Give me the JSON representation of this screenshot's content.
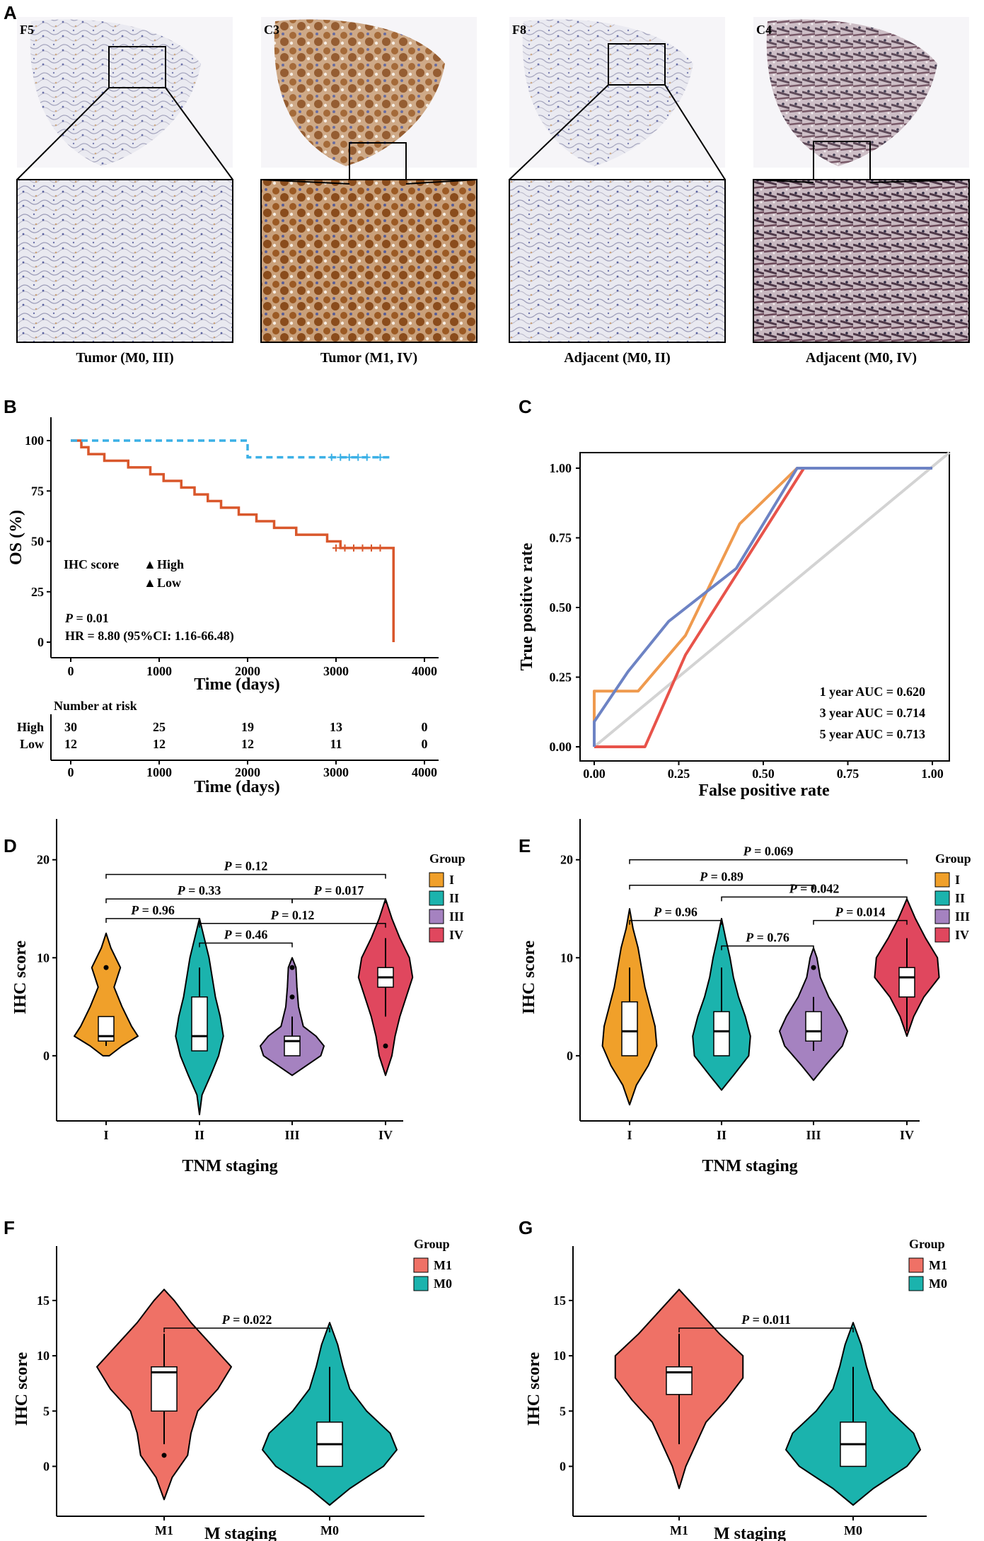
{
  "panel_labels": [
    "A",
    "B",
    "C",
    "D",
    "E",
    "F",
    "G"
  ],
  "panel_a": {
    "tiles": [
      {
        "id": "F5",
        "caption": "Tumor (M0, III)",
        "stain": "light"
      },
      {
        "id": "C3",
        "caption": "Tumor (M1, IV)",
        "stain": "brown"
      },
      {
        "id": "F8",
        "caption": "Adjacent (M0, II)",
        "stain": "light"
      },
      {
        "id": "C4",
        "caption": "Adjacent (M0, IV)",
        "stain": "dark"
      }
    ]
  },
  "colors": {
    "high": "#d9572b",
    "low": "#3bb0e6",
    "auc1": "#e8534a",
    "auc3": "#ef9a4e",
    "auc5": "#6d83c4",
    "diag": "#d3d3d3",
    "I": "#f0a02a",
    "II": "#1bb3ad",
    "III": "#a582c0",
    "IV": "#e0475e",
    "M1": "#ef7166",
    "M0": "#1bb3ad"
  },
  "chart_data": [
    {
      "panel": "B",
      "type": "line",
      "title": "",
      "xlabel": "Time (days)",
      "ylabel": "OS (%)",
      "xlim": [
        0,
        4000
      ],
      "ylim": [
        0,
        100
      ],
      "xticks": [
        "0",
        "1000",
        "2000",
        "3000",
        "4000"
      ],
      "yticks": [
        "0",
        "25",
        "50",
        "75",
        "100"
      ],
      "legend_title": "IHC score",
      "series": [
        {
          "name": "High",
          "x": [
            0,
            120,
            200,
            380,
            650,
            900,
            1050,
            1250,
            1400,
            1550,
            1700,
            1900,
            2100,
            2300,
            2550,
            2900,
            3050,
            3650,
            3650
          ],
          "y": [
            100,
            96.7,
            93.3,
            90,
            86.7,
            83.3,
            80,
            76.7,
            73.3,
            70,
            66.7,
            63.3,
            60,
            56.7,
            53.3,
            50,
            46.7,
            46.7,
            0
          ]
        },
        {
          "name": "Low",
          "x": [
            0,
            2000,
            2000,
            3650
          ],
          "y": [
            100,
            100,
            91.7,
            91.7
          ]
        }
      ],
      "annotations": [
        "P = 0.01",
        "HR = 8.80 (95%CI: 1.16-66.48)"
      ],
      "risk_table": {
        "title": "Number at risk",
        "rows": [
          {
            "name": "High",
            "values": [
              "30",
              "25",
              "19",
              "13",
              "0"
            ]
          },
          {
            "name": "Low",
            "values": [
              "12",
              "12",
              "12",
              "11",
              "0"
            ]
          }
        ],
        "xlabel": "Time (days)"
      }
    },
    {
      "panel": "C",
      "type": "line",
      "xlabel": "False positive rate",
      "ylabel": "True positive rate",
      "xlim": [
        0,
        1
      ],
      "ylim": [
        0,
        1
      ],
      "xticks": [
        "0.00",
        "0.25",
        "0.50",
        "0.75",
        "1.00"
      ],
      "yticks": [
        "0.00",
        "0.25",
        "0.50",
        "0.75",
        "1.00"
      ],
      "series": [
        {
          "name": "1 year AUC = 0.620",
          "x": [
            0,
            0,
            0.15,
            0.27,
            0.62,
            1.0
          ],
          "y": [
            0,
            0,
            0,
            0.33,
            1.0,
            1.0
          ]
        },
        {
          "name": "3 year AUC = 0.714",
          "x": [
            0,
            0,
            0.13,
            0.27,
            0.43,
            0.6,
            1.0
          ],
          "y": [
            0,
            0.2,
            0.2,
            0.4,
            0.8,
            1.0,
            1.0
          ]
        },
        {
          "name": "5 year AUC = 0.713",
          "x": [
            0,
            0,
            0.1,
            0.22,
            0.42,
            0.6,
            1.0
          ],
          "y": [
            0,
            0.09,
            0.27,
            0.45,
            0.64,
            1.0,
            1.0
          ]
        }
      ]
    },
    {
      "panel": "D",
      "type": "violin",
      "xlabel": "TNM staging",
      "ylabel": "IHC score",
      "ylim": [
        -6,
        22
      ],
      "yticks": [
        0,
        10,
        20
      ],
      "categories": [
        "I",
        "II",
        "III",
        "IV"
      ],
      "legend_title": "Group",
      "groups": [
        {
          "name": "I",
          "min": 0,
          "max": 12.5,
          "q1": 1.5,
          "median": 2,
          "q3": 4,
          "wmin": 1,
          "wmax": 4,
          "outliers": [
            9
          ],
          "dens": [
            [
              0,
              0.1
            ],
            [
              1,
              0.5
            ],
            [
              2,
              1.0
            ],
            [
              3,
              0.8
            ],
            [
              5,
              0.5
            ],
            [
              7,
              0.25
            ],
            [
              9,
              0.45
            ],
            [
              11,
              0.15
            ],
            [
              12.5,
              0
            ]
          ]
        },
        {
          "name": "II",
          "min": -6,
          "max": 14,
          "q1": 0.5,
          "median": 2,
          "q3": 6,
          "wmin": 0.5,
          "wmax": 9,
          "outliers": [],
          "dens": [
            [
              -6,
              0
            ],
            [
              -4,
              0.08
            ],
            [
              -2,
              0.35
            ],
            [
              0,
              0.6
            ],
            [
              2,
              0.75
            ],
            [
              4,
              0.65
            ],
            [
              6,
              0.5
            ],
            [
              8,
              0.4
            ],
            [
              10,
              0.3
            ],
            [
              12,
              0.15
            ],
            [
              14,
              0
            ]
          ]
        },
        {
          "name": "III",
          "min": -2,
          "max": 10,
          "q1": 0,
          "median": 1.5,
          "q3": 2,
          "wmin": 0,
          "wmax": 4,
          "outliers": [
            6,
            9
          ],
          "dens": [
            [
              -2,
              0
            ],
            [
              -1,
              0.45
            ],
            [
              0,
              0.9
            ],
            [
              1,
              1.0
            ],
            [
              2,
              0.75
            ],
            [
              3,
              0.35
            ],
            [
              5,
              0.2
            ],
            [
              7,
              0.15
            ],
            [
              9,
              0.12
            ],
            [
              10,
              0
            ]
          ]
        },
        {
          "name": "IV",
          "min": -2,
          "max": 16,
          "q1": 7,
          "median": 8,
          "q3": 9,
          "wmin": 4,
          "wmax": 12,
          "outliers": [
            1
          ],
          "dens": [
            [
              -2,
              0
            ],
            [
              0,
              0.2
            ],
            [
              2,
              0.3
            ],
            [
              4,
              0.45
            ],
            [
              6,
              0.65
            ],
            [
              8,
              0.85
            ],
            [
              10,
              0.75
            ],
            [
              12,
              0.45
            ],
            [
              14,
              0.2
            ],
            [
              16,
              0
            ]
          ]
        }
      ],
      "brackets": [
        {
          "a": 0,
          "b": 1,
          "y": 14,
          "label": "P = 0.96"
        },
        {
          "a": 1,
          "b": 2,
          "y": 11.5,
          "label": "P = 0.46"
        },
        {
          "a": 0,
          "b": 2,
          "y": 16,
          "label": "P = 0.33"
        },
        {
          "a": 2,
          "b": 3,
          "y": 16,
          "label": "P = 0.017"
        },
        {
          "a": 1,
          "b": 3,
          "y": 13.5,
          "label": "P = 0.12"
        },
        {
          "a": 0,
          "b": 3,
          "y": 18.5,
          "label": "P = 0.12"
        }
      ]
    },
    {
      "panel": "E",
      "type": "violin",
      "xlabel": "TNM staging",
      "ylabel": "IHC score",
      "ylim": [
        -6,
        22
      ],
      "yticks": [
        0,
        10,
        20
      ],
      "categories": [
        "I",
        "II",
        "III",
        "IV"
      ],
      "legend_title": "Group",
      "groups": [
        {
          "name": "I",
          "min": -5,
          "max": 15,
          "q1": 0,
          "median": 2.5,
          "q3": 5.5,
          "wmin": 0,
          "wmax": 9,
          "outliers": [],
          "dens": [
            [
              -5,
              0
            ],
            [
              -3,
              0.2
            ],
            [
              -1,
              0.55
            ],
            [
              1,
              0.8
            ],
            [
              3,
              0.75
            ],
            [
              5,
              0.6
            ],
            [
              7,
              0.45
            ],
            [
              9,
              0.35
            ],
            [
              11,
              0.25
            ],
            [
              13,
              0.1
            ],
            [
              15,
              0
            ]
          ]
        },
        {
          "name": "II",
          "min": -3.5,
          "max": 14,
          "q1": 0,
          "median": 2.5,
          "q3": 4.5,
          "wmin": 0,
          "wmax": 9,
          "outliers": [],
          "dens": [
            [
              -3.5,
              0
            ],
            [
              -2,
              0.35
            ],
            [
              0,
              0.8
            ],
            [
              2,
              0.85
            ],
            [
              4,
              0.7
            ],
            [
              6,
              0.5
            ],
            [
              8,
              0.35
            ],
            [
              10,
              0.25
            ],
            [
              12,
              0.12
            ],
            [
              14,
              0
            ]
          ]
        },
        {
          "name": "III",
          "min": -2.5,
          "max": 11,
          "q1": 1.5,
          "median": 2.5,
          "q3": 4.5,
          "wmin": 0.5,
          "wmax": 6,
          "outliers": [
            9
          ],
          "dens": [
            [
              -2.5,
              0
            ],
            [
              -1,
              0.35
            ],
            [
              1,
              0.85
            ],
            [
              2.5,
              1.0
            ],
            [
              4,
              0.8
            ],
            [
              6,
              0.45
            ],
            [
              8,
              0.2
            ],
            [
              10,
              0.1
            ],
            [
              11,
              0
            ]
          ]
        },
        {
          "name": "IV",
          "min": 2,
          "max": 16,
          "q1": 6,
          "median": 8,
          "q3": 9,
          "wmin": 2.5,
          "wmax": 12,
          "outliers": [],
          "dens": [
            [
              2,
              0
            ],
            [
              4,
              0.2
            ],
            [
              6,
              0.5
            ],
            [
              8,
              0.95
            ],
            [
              10,
              0.9
            ],
            [
              12,
              0.55
            ],
            [
              14,
              0.25
            ],
            [
              16,
              0
            ]
          ]
        }
      ],
      "brackets": [
        {
          "a": 0,
          "b": 1,
          "y": 13.8,
          "label": "P = 0.96"
        },
        {
          "a": 1,
          "b": 2,
          "y": 11.2,
          "label": "P = 0.76"
        },
        {
          "a": 2,
          "b": 3,
          "y": 13.8,
          "label": "P = 0.014"
        },
        {
          "a": 1,
          "b": 3,
          "y": 16.2,
          "label": "P = 0.042"
        },
        {
          "a": 0,
          "b": 2,
          "y": 17.4,
          "label": "P = 0.89"
        },
        {
          "a": 0,
          "b": 3,
          "y": 20,
          "label": "P = 0.069"
        }
      ]
    },
    {
      "panel": "F",
      "type": "violin",
      "xlabel": "M staging",
      "ylabel": "IHC score",
      "ylim": [
        -4,
        18
      ],
      "yticks": [
        0,
        5,
        10,
        15
      ],
      "categories": [
        "M1",
        "M0"
      ],
      "legend_title": "Group",
      "groups": [
        {
          "name": "M1",
          "min": -3,
          "max": 16,
          "q1": 5,
          "median": 8.5,
          "q3": 9,
          "wmin": 2,
          "wmax": 12,
          "outliers": [
            1
          ],
          "dens": [
            [
              -3,
              0
            ],
            [
              -1,
              0.12
            ],
            [
              1,
              0.35
            ],
            [
              3,
              0.4
            ],
            [
              5,
              0.5
            ],
            [
              7,
              0.8
            ],
            [
              9,
              1.0
            ],
            [
              11,
              0.7
            ],
            [
              13,
              0.4
            ],
            [
              15,
              0.15
            ],
            [
              16,
              0
            ]
          ]
        },
        {
          "name": "M0",
          "min": -3.5,
          "max": 13,
          "q1": 0,
          "median": 2,
          "q3": 4,
          "wmin": 0,
          "wmax": 9,
          "outliers": [],
          "dens": [
            [
              -3.5,
              0
            ],
            [
              -2,
              0.3
            ],
            [
              0,
              0.8
            ],
            [
              1.5,
              1.0
            ],
            [
              3,
              0.9
            ],
            [
              5,
              0.55
            ],
            [
              7,
              0.3
            ],
            [
              9,
              0.2
            ],
            [
              11,
              0.12
            ],
            [
              13,
              0
            ]
          ]
        }
      ],
      "brackets": [
        {
          "a": 0,
          "b": 1,
          "y": 12.5,
          "label": "P = 0.022"
        }
      ]
    },
    {
      "panel": "G",
      "type": "violin",
      "xlabel": "M staging",
      "ylabel": "IHC score",
      "ylim": [
        -4,
        18
      ],
      "yticks": [
        0,
        5,
        10,
        15
      ],
      "categories": [
        "M1",
        "M0"
      ],
      "legend_title": "Group",
      "groups": [
        {
          "name": "M1",
          "min": -2,
          "max": 16,
          "q1": 6.5,
          "median": 8.5,
          "q3": 9,
          "wmin": 2,
          "wmax": 12,
          "outliers": [],
          "dens": [
            [
              -2,
              0
            ],
            [
              0,
              0.1
            ],
            [
              2,
              0.25
            ],
            [
              4,
              0.4
            ],
            [
              6,
              0.7
            ],
            [
              8,
              0.95
            ],
            [
              10,
              0.95
            ],
            [
              12,
              0.6
            ],
            [
              14,
              0.3
            ],
            [
              16,
              0
            ]
          ]
        },
        {
          "name": "M0",
          "min": -3.5,
          "max": 13,
          "q1": 0,
          "median": 2,
          "q3": 4,
          "wmin": 0,
          "wmax": 9,
          "outliers": [],
          "dens": [
            [
              -3.5,
              0
            ],
            [
              -2,
              0.3
            ],
            [
              0,
              0.8
            ],
            [
              1.5,
              1.0
            ],
            [
              3,
              0.9
            ],
            [
              5,
              0.55
            ],
            [
              7,
              0.3
            ],
            [
              9,
              0.2
            ],
            [
              11,
              0.12
            ],
            [
              13,
              0
            ]
          ]
        }
      ],
      "brackets": [
        {
          "a": 0,
          "b": 1,
          "y": 12.5,
          "label": "P = 0.011"
        }
      ]
    }
  ]
}
